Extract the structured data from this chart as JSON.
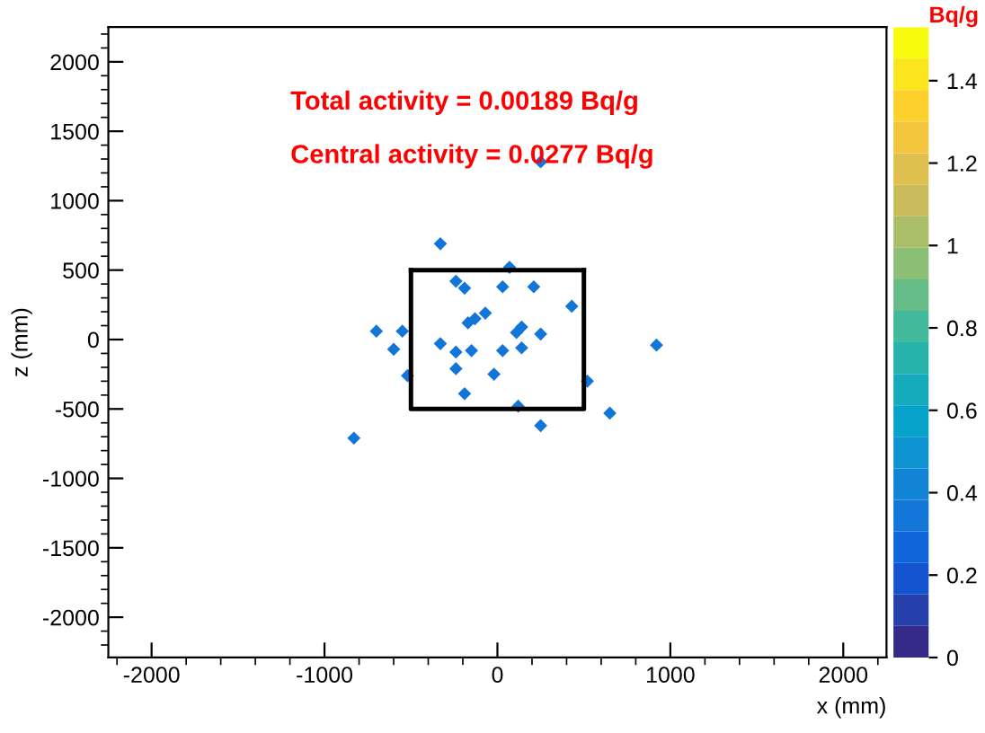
{
  "chart_data": {
    "type": "scatter",
    "xlabel": "x (mm)",
    "ylabel": "z (mm)",
    "clabel": "Bq/g",
    "annotations": [
      "Total activity = 0.00189 Bq/g",
      "Central activity = 0.0277 Bq/g"
    ],
    "xlim": [
      -2250,
      2250
    ],
    "ylim": [
      -2290,
      2250
    ],
    "xticks": [
      -2000,
      -1000,
      0,
      1000,
      2000
    ],
    "yticks": [
      -2000,
      -1500,
      -1000,
      -500,
      0,
      500,
      1000,
      1500,
      2000
    ],
    "clim": [
      0,
      1.53
    ],
    "cticks": [
      0,
      0.2,
      0.4,
      0.6,
      0.8,
      1,
      1.2,
      1.4
    ],
    "grid": false,
    "series": [
      {
        "marker": "diamond",
        "x": [
          -330,
          70,
          -240,
          -190,
          30,
          210,
          430,
          -70,
          -170,
          -130,
          140,
          110,
          250,
          -700,
          -550,
          -600,
          -330,
          -240,
          -150,
          30,
          140,
          -240,
          -20,
          -520,
          520,
          -190,
          120,
          650,
          250,
          920,
          -830,
          250
        ],
        "values": [
          690,
          520,
          420,
          370,
          380,
          380,
          240,
          190,
          120,
          150,
          90,
          50,
          40,
          60,
          60,
          -70,
          -30,
          -90,
          -80,
          -80,
          -60,
          -210,
          -250,
          -260,
          -300,
          -390,
          -480,
          -530,
          -620,
          -40,
          -710,
          1280
        ],
        "cvalues": [
          0.35,
          0.35,
          0.35,
          0.35,
          0.35,
          0.35,
          0.35,
          0.35,
          0.35,
          0.35,
          0.35,
          0.35,
          0.35,
          0.35,
          0.35,
          0.35,
          0.35,
          0.35,
          0.35,
          0.35,
          0.35,
          0.35,
          0.35,
          0.35,
          0.35,
          0.35,
          0.35,
          0.35,
          0.35,
          0.35,
          0.35,
          0.35
        ]
      },
      {
        "type": "line",
        "marker": "none",
        "color": "#000000",
        "x": [
          -500,
          -500,
          500,
          500
        ],
        "values": [
          500,
          -500,
          -500,
          500
        ]
      },
      {
        "type": "line",
        "marker": "none",
        "color": "#000000",
        "x": [
          -500,
          500
        ],
        "values": [
          500,
          500
        ]
      }
    ]
  }
}
